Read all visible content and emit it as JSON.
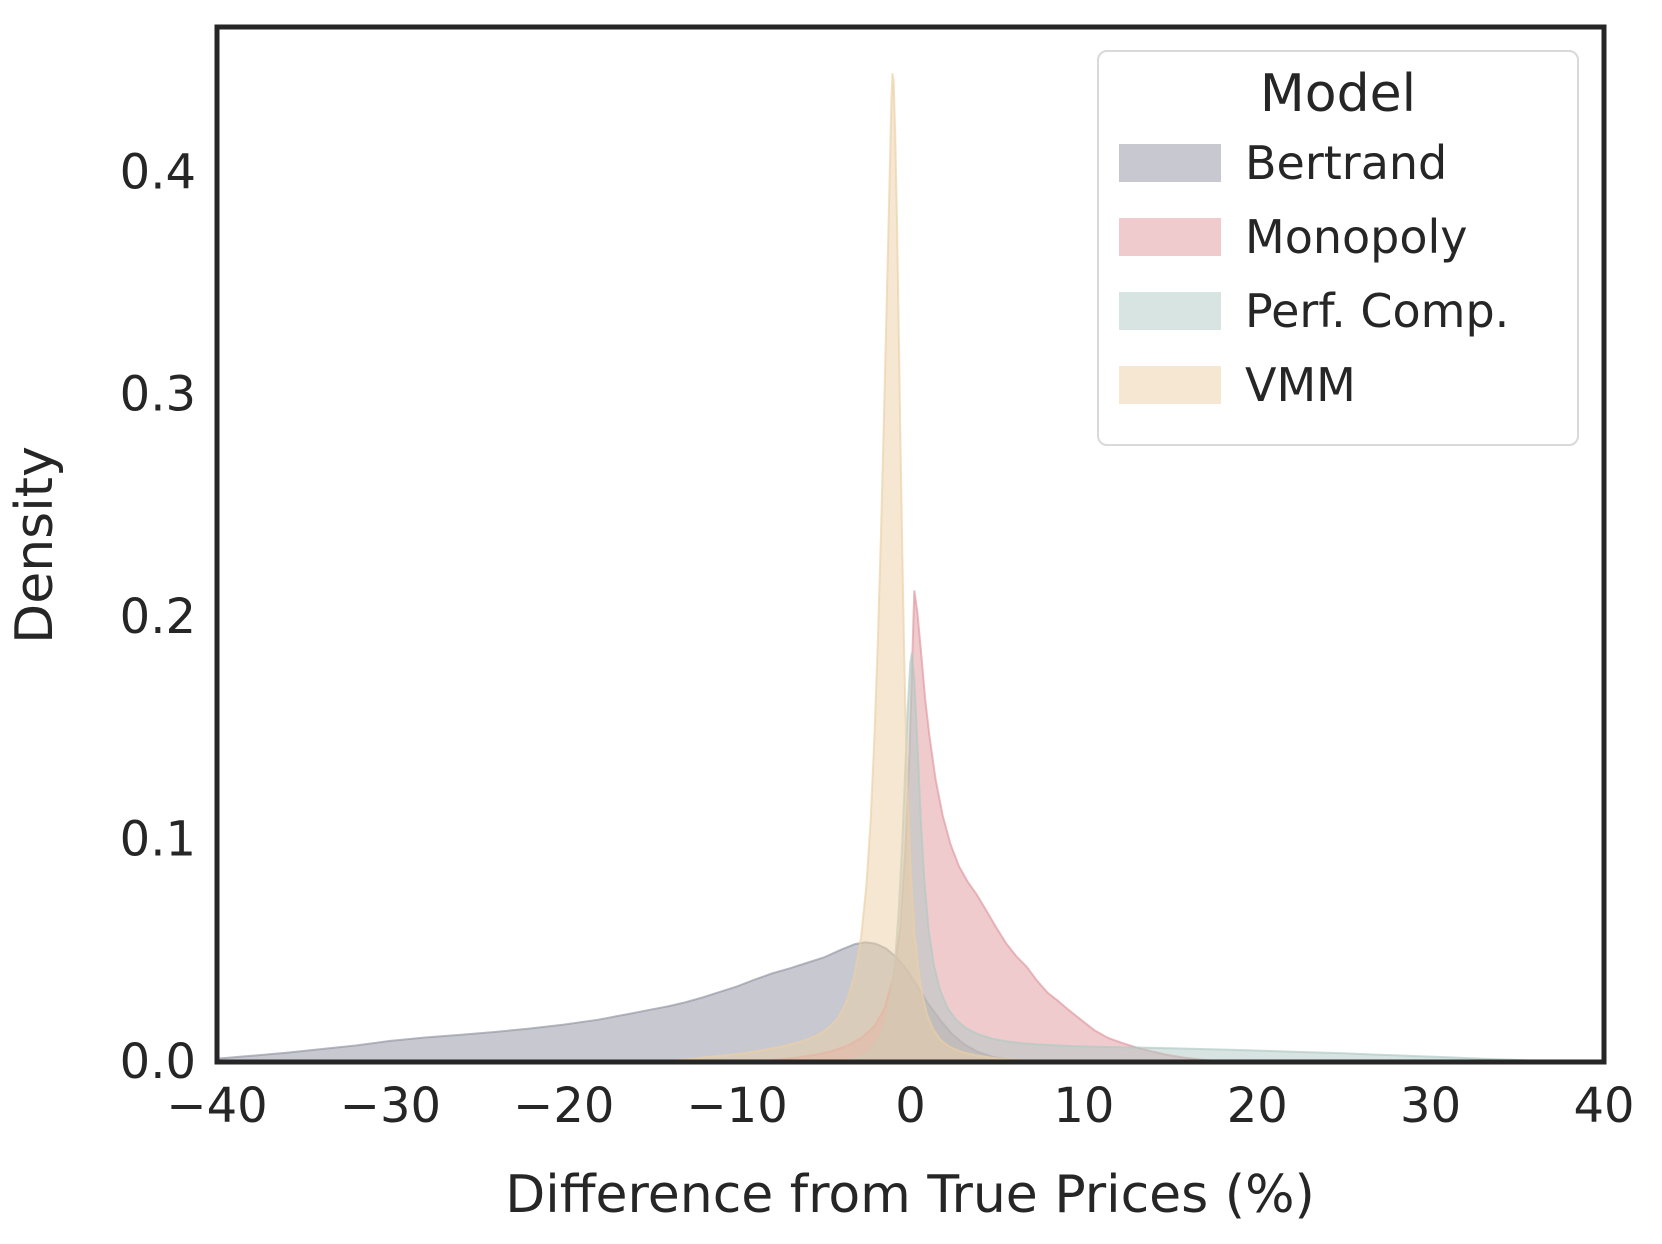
{
  "chart_data": {
    "type": "area",
    "title": "",
    "xlabel": "Difference from True Prices (%)",
    "ylabel": "Density",
    "xlim": [
      -40,
      40
    ],
    "ylim": [
      0,
      0.4653
    ],
    "grid": false,
    "xticks": [
      {
        "value": -40,
        "label": "−40"
      },
      {
        "value": -30,
        "label": "−30"
      },
      {
        "value": -20,
        "label": "−20"
      },
      {
        "value": -10,
        "label": "−10"
      },
      {
        "value": 0,
        "label": "0"
      },
      {
        "value": 10,
        "label": "10"
      },
      {
        "value": 20,
        "label": "20"
      },
      {
        "value": 30,
        "label": "30"
      },
      {
        "value": 40,
        "label": "40"
      }
    ],
    "yticks": [
      {
        "value": 0.0,
        "label": "0.0"
      },
      {
        "value": 0.1,
        "label": "0.1"
      },
      {
        "value": 0.2,
        "label": "0.2"
      },
      {
        "value": 0.3,
        "label": "0.3"
      },
      {
        "value": 0.4,
        "label": "0.4"
      }
    ],
    "legend": {
      "title": "Model",
      "position": "upper right"
    },
    "series": [
      {
        "name": "Bertrand",
        "color": "#9193a1",
        "fill_alpha": 0.5,
        "points": [
          [
            -40,
            0.0015
          ],
          [
            -38,
            0.0028
          ],
          [
            -36,
            0.0042
          ],
          [
            -34,
            0.0058
          ],
          [
            -32,
            0.0074
          ],
          [
            -30,
            0.0095
          ],
          [
            -28,
            0.011
          ],
          [
            -26,
            0.0122
          ],
          [
            -24,
            0.0135
          ],
          [
            -22,
            0.015
          ],
          [
            -20,
            0.0168
          ],
          [
            -18,
            0.019
          ],
          [
            -17,
            0.0205
          ],
          [
            -16,
            0.022
          ],
          [
            -15,
            0.0235
          ],
          [
            -14,
            0.025
          ],
          [
            -13,
            0.0268
          ],
          [
            -12,
            0.029
          ],
          [
            -11,
            0.0315
          ],
          [
            -10,
            0.034
          ],
          [
            -9,
            0.037
          ],
          [
            -8,
            0.0398
          ],
          [
            -7,
            0.042
          ],
          [
            -6,
            0.0445
          ],
          [
            -5,
            0.047
          ],
          [
            -4,
            0.0505
          ],
          [
            -3.2,
            0.053
          ],
          [
            -2.6,
            0.0538
          ],
          [
            -2,
            0.0532
          ],
          [
            -1.4,
            0.051
          ],
          [
            -0.8,
            0.047
          ],
          [
            -0.2,
            0.0415
          ],
          [
            0.4,
            0.034
          ],
          [
            1,
            0.0265
          ],
          [
            1.7,
            0.019
          ],
          [
            2.4,
            0.0125
          ],
          [
            3.1,
            0.008
          ],
          [
            3.9,
            0.0045
          ],
          [
            4.8,
            0.0022
          ],
          [
            5.8,
            0.001
          ],
          [
            7,
            0
          ]
        ]
      },
      {
        "name": "Monopoly",
        "color": "#df979d",
        "fill_alpha": 0.5,
        "points": [
          [
            -9,
            0
          ],
          [
            -7.8,
            0.001
          ],
          [
            -6.6,
            0.002
          ],
          [
            -5.5,
            0.0032
          ],
          [
            -4.5,
            0.005
          ],
          [
            -3.6,
            0.0075
          ],
          [
            -2.8,
            0.011
          ],
          [
            -2.1,
            0.016
          ],
          [
            -1.5,
            0.024
          ],
          [
            -1,
            0.038
          ],
          [
            -0.6,
            0.06
          ],
          [
            -0.3,
            0.095
          ],
          [
            -0.05,
            0.14
          ],
          [
            0.1,
            0.18
          ],
          [
            0.22,
            0.212
          ],
          [
            0.4,
            0.202
          ],
          [
            0.6,
            0.185
          ],
          [
            0.85,
            0.163
          ],
          [
            1.1,
            0.146
          ],
          [
            1.45,
            0.127
          ],
          [
            1.85,
            0.111
          ],
          [
            2.3,
            0.098
          ],
          [
            2.8,
            0.088
          ],
          [
            3.3,
            0.081
          ],
          [
            3.8,
            0.0755
          ],
          [
            4.3,
            0.069
          ],
          [
            4.9,
            0.061
          ],
          [
            5.5,
            0.0535
          ],
          [
            6.1,
            0.0475
          ],
          [
            6.7,
            0.0428
          ],
          [
            7.3,
            0.0365
          ],
          [
            7.9,
            0.0312
          ],
          [
            8.5,
            0.0275
          ],
          [
            9.1,
            0.0235
          ],
          [
            9.8,
            0.0192
          ],
          [
            10.6,
            0.0143
          ],
          [
            11.4,
            0.0108
          ],
          [
            12.2,
            0.0086
          ],
          [
            13,
            0.0066
          ],
          [
            13.9,
            0.0048
          ],
          [
            14.8,
            0.0032
          ],
          [
            15.8,
            0.002
          ],
          [
            16.8,
            0.001
          ],
          [
            17.8,
            0.0004
          ],
          [
            19,
            0
          ]
        ]
      },
      {
        "name": "Perf. Comp.",
        "color": "#afc9c3",
        "fill_alpha": 0.5,
        "points": [
          [
            -4,
            0
          ],
          [
            -3.3,
            0.0012
          ],
          [
            -2.7,
            0.003
          ],
          [
            -2.2,
            0.006
          ],
          [
            -1.8,
            0.0105
          ],
          [
            -1.45,
            0.017
          ],
          [
            -1.15,
            0.028
          ],
          [
            -0.9,
            0.045
          ],
          [
            -0.68,
            0.068
          ],
          [
            -0.48,
            0.098
          ],
          [
            -0.3,
            0.132
          ],
          [
            -0.15,
            0.16
          ],
          [
            -0.02,
            0.179
          ],
          [
            0.08,
            0.184
          ],
          [
            0.22,
            0.172
          ],
          [
            0.4,
            0.143
          ],
          [
            0.6,
            0.108
          ],
          [
            0.8,
            0.081
          ],
          [
            1.05,
            0.059
          ],
          [
            1.35,
            0.0435
          ],
          [
            1.7,
            0.0325
          ],
          [
            2.1,
            0.0248
          ],
          [
            2.6,
            0.0192
          ],
          [
            3.2,
            0.0152
          ],
          [
            3.9,
            0.0125
          ],
          [
            4.7,
            0.0105
          ],
          [
            5.6,
            0.0092
          ],
          [
            6.6,
            0.0083
          ],
          [
            7.8,
            0.0077
          ],
          [
            9.2,
            0.0072
          ],
          [
            11,
            0.0068
          ],
          [
            13,
            0.0065
          ],
          [
            15,
            0.0062
          ],
          [
            17,
            0.0058
          ],
          [
            19,
            0.0054
          ],
          [
            21,
            0.0049
          ],
          [
            23,
            0.0044
          ],
          [
            25,
            0.0039
          ],
          [
            27,
            0.0033
          ],
          [
            29,
            0.0027
          ],
          [
            31,
            0.0021
          ],
          [
            33,
            0.0015
          ],
          [
            35,
            0.0009
          ],
          [
            37,
            0.0004
          ],
          [
            38.6,
            0
          ]
        ]
      },
      {
        "name": "VMM",
        "color": "#ebcfa5",
        "fill_alpha": 0.5,
        "points": [
          [
            -15,
            0
          ],
          [
            -13.6,
            0.0008
          ],
          [
            -12.2,
            0.0018
          ],
          [
            -10.9,
            0.0028
          ],
          [
            -9.6,
            0.004
          ],
          [
            -8.4,
            0.0055
          ],
          [
            -7.3,
            0.0072
          ],
          [
            -6.3,
            0.0092
          ],
          [
            -5.5,
            0.0115
          ],
          [
            -4.8,
            0.0148
          ],
          [
            -4.2,
            0.0195
          ],
          [
            -3.7,
            0.027
          ],
          [
            -3.25,
            0.0385
          ],
          [
            -2.85,
            0.056
          ],
          [
            -2.55,
            0.079
          ],
          [
            -2.3,
            0.108
          ],
          [
            -2.08,
            0.146
          ],
          [
            -1.88,
            0.19
          ],
          [
            -1.7,
            0.238
          ],
          [
            -1.54,
            0.287
          ],
          [
            -1.4,
            0.332
          ],
          [
            -1.28,
            0.372
          ],
          [
            -1.18,
            0.405
          ],
          [
            -1.1,
            0.432
          ],
          [
            -1.04,
            0.4445
          ],
          [
            -0.97,
            0.4405
          ],
          [
            -0.88,
            0.417
          ],
          [
            -0.78,
            0.378
          ],
          [
            -0.68,
            0.33
          ],
          [
            -0.58,
            0.28
          ],
          [
            -0.48,
            0.232
          ],
          [
            -0.38,
            0.19
          ],
          [
            -0.28,
            0.154
          ],
          [
            -0.18,
            0.125
          ],
          [
            -0.06,
            0.098
          ],
          [
            0.08,
            0.0755
          ],
          [
            0.25,
            0.0565
          ],
          [
            0.45,
            0.0415
          ],
          [
            0.68,
            0.0302
          ],
          [
            0.95,
            0.0215
          ],
          [
            1.3,
            0.0148
          ],
          [
            1.75,
            0.0098
          ],
          [
            2.3,
            0.0066
          ],
          [
            3,
            0.0044
          ],
          [
            3.8,
            0.0029
          ],
          [
            4.8,
            0.0018
          ],
          [
            6,
            0.001
          ],
          [
            7,
            0.0004
          ],
          [
            8,
            0
          ]
        ]
      }
    ]
  }
}
